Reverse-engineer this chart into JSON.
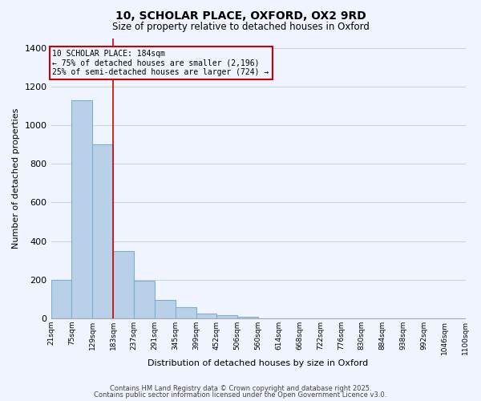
{
  "title": "10, SCHOLAR PLACE, OXFORD, OX2 9RD",
  "subtitle": "Size of property relative to detached houses in Oxford",
  "xlabel": "Distribution of detached houses by size in Oxford",
  "ylabel": "Number of detached properties",
  "bar_values": [
    200,
    1130,
    900,
    350,
    195,
    95,
    60,
    25,
    15,
    10,
    0,
    0,
    0,
    0,
    0,
    0,
    0,
    0,
    0,
    0
  ],
  "bin_edges": [
    21,
    75,
    129,
    183,
    237,
    291,
    345,
    399,
    452,
    506,
    560,
    614,
    668,
    722,
    776,
    830,
    884,
    938,
    992,
    1046,
    1100
  ],
  "tick_labels": [
    "21sqm",
    "75sqm",
    "129sqm",
    "183sqm",
    "237sqm",
    "291sqm",
    "345sqm",
    "399sqm",
    "452sqm",
    "506sqm",
    "560sqm",
    "614sqm",
    "668sqm",
    "722sqm",
    "776sqm",
    "830sqm",
    "884sqm",
    "938sqm",
    "992sqm",
    "1046sqm",
    "1100sqm"
  ],
  "bar_color": "#b8d0e8",
  "bar_edge_color": "#7bafd4",
  "vline_x": 183,
  "vline_color": "#cc0000",
  "annotation_line1": "10 SCHOLAR PLACE: 184sqm",
  "annotation_line2": "← 75% of detached houses are smaller (2,196)",
  "annotation_line3": "25% of semi-detached houses are larger (724) →",
  "annotation_box_color": "#cc0000",
  "ylim": [
    0,
    1450
  ],
  "yticks": [
    0,
    200,
    400,
    600,
    800,
    1000,
    1200,
    1400
  ],
  "footer1": "Contains HM Land Registry data © Crown copyright and database right 2025.",
  "footer2": "Contains public sector information licensed under the Open Government Licence v3.0.",
  "bg_color": "#f0f4ff",
  "grid_color": "#c8d4e8"
}
